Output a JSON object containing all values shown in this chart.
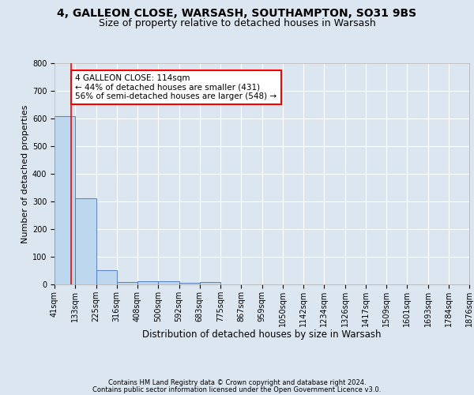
{
  "title1": "4, GALLEON CLOSE, WARSASH, SOUTHAMPTON, SO31 9BS",
  "title2": "Size of property relative to detached houses in Warsash",
  "xlabel": "Distribution of detached houses by size in Warsash",
  "ylabel": "Number of detached properties",
  "footer1": "Contains HM Land Registry data © Crown copyright and database right 2024.",
  "footer2": "Contains public sector information licensed under the Open Government Licence v3.0.",
  "bin_edges": [
    41,
    133,
    225,
    316,
    408,
    500,
    592,
    683,
    775,
    867,
    959,
    1050,
    1142,
    1234,
    1326,
    1417,
    1509,
    1601,
    1693,
    1784,
    1876
  ],
  "bar_heights": [
    608,
    310,
    52,
    10,
    12,
    12,
    5,
    8,
    0,
    0,
    0,
    0,
    0,
    0,
    0,
    0,
    0,
    0,
    0,
    0
  ],
  "bar_color": "#bdd7ee",
  "bar_edge_color": "#4472c4",
  "bg_color": "#dce6f1",
  "plot_bg_color": "#dce6f1",
  "red_line_x": 114,
  "red_line_color": "#ff0000",
  "annotation_text": "4 GALLEON CLOSE: 114sqm\n← 44% of detached houses are smaller (431)\n56% of semi-detached houses are larger (548) →",
  "annotation_box_color": "#ffffff",
  "annotation_box_edge": "#ff0000",
  "ylim": [
    0,
    800
  ],
  "yticks": [
    0,
    100,
    200,
    300,
    400,
    500,
    600,
    700,
    800
  ],
  "grid_color": "#ffffff",
  "title1_fontsize": 10,
  "title2_fontsize": 9,
  "xlabel_fontsize": 8.5,
  "ylabel_fontsize": 8,
  "tick_fontsize": 7,
  "annotation_fontsize": 7.5,
  "footer_fontsize": 6
}
